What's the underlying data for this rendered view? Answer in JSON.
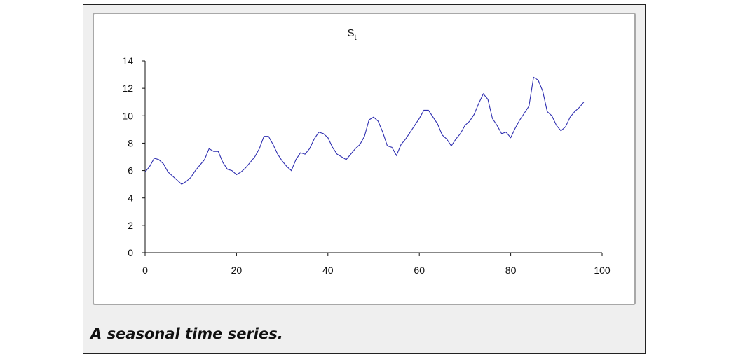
{
  "caption": "A seasonal time series.",
  "colors": {
    "series": "#2e2eb0",
    "axis": "#111111",
    "frame_border": "#a8a8a8"
  },
  "chart_data": {
    "type": "line",
    "title": "S",
    "title_subscript": "t",
    "xlabel": "",
    "ylabel": "",
    "xlim": [
      0,
      100
    ],
    "ylim": [
      0,
      14
    ],
    "xticks": [
      0,
      20,
      40,
      60,
      80,
      100
    ],
    "yticks": [
      0,
      2,
      4,
      6,
      8,
      10,
      12,
      14
    ],
    "grid": false,
    "legend": "none",
    "series": [
      {
        "x": [
          0,
          1,
          2,
          3,
          4,
          5,
          6,
          7,
          8,
          9,
          10,
          11,
          12,
          13,
          14,
          15,
          16,
          17,
          18,
          19,
          20,
          21,
          22,
          23,
          24,
          25,
          26,
          27,
          28,
          29,
          30,
          31,
          32,
          33,
          34,
          35,
          36,
          37,
          38,
          39,
          40,
          41,
          42,
          43,
          44,
          45,
          46,
          47,
          48,
          49,
          50,
          51,
          52,
          53,
          54,
          55,
          56,
          57,
          58,
          59,
          60,
          61,
          62,
          63,
          64,
          65,
          66,
          67,
          68,
          69,
          70,
          71,
          72,
          73,
          74,
          75,
          76,
          77,
          78,
          79,
          80,
          81,
          82,
          83,
          84,
          85,
          86,
          87,
          88,
          89,
          90,
          91,
          92,
          93,
          94,
          95,
          96
        ],
        "values": [
          5.9,
          6.3,
          6.9,
          6.8,
          6.5,
          5.9,
          5.6,
          5.3,
          5.0,
          5.2,
          5.5,
          6.0,
          6.4,
          6.8,
          7.6,
          7.4,
          7.4,
          6.6,
          6.1,
          6.0,
          5.7,
          5.9,
          6.2,
          6.6,
          7.0,
          7.6,
          8.5,
          8.5,
          7.9,
          7.2,
          6.7,
          6.3,
          6.0,
          6.8,
          7.3,
          7.2,
          7.6,
          8.3,
          8.8,
          8.7,
          8.4,
          7.7,
          7.2,
          7.0,
          6.8,
          7.2,
          7.6,
          7.9,
          8.5,
          9.7,
          9.9,
          9.6,
          8.8,
          7.8,
          7.7,
          7.1,
          7.9,
          8.3,
          8.8,
          9.3,
          9.8,
          10.4,
          10.4,
          9.9,
          9.4,
          8.6,
          8.3,
          7.8,
          8.3,
          8.7,
          9.3,
          9.6,
          10.1,
          10.9,
          11.6,
          11.2,
          9.8,
          9.3,
          8.7,
          8.8,
          8.4,
          9.1,
          9.7,
          10.2,
          10.7,
          12.8,
          12.6,
          11.8,
          10.3,
          10.0,
          9.3,
          8.9,
          9.2,
          9.9,
          10.3,
          10.6,
          11.0
        ]
      }
    ]
  }
}
